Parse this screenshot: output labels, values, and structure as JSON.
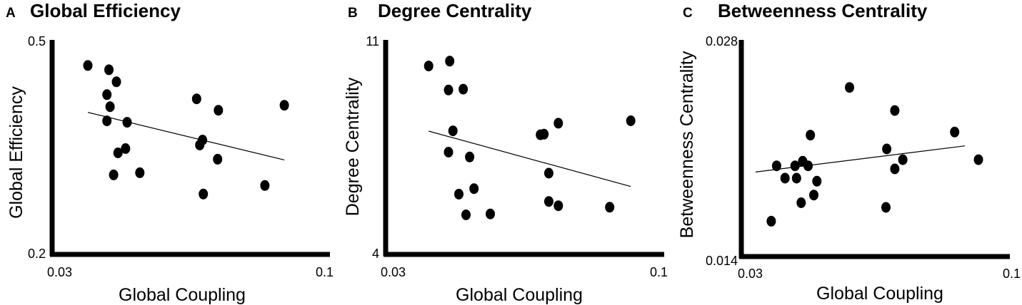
{
  "chart_data": [
    {
      "type": "scatter",
      "panel": "A",
      "title": "Global Efficiency",
      "xlabel": "Global Coupling",
      "ylabel": "Global Efficiency",
      "xlim": [
        0.03,
        0.1
      ],
      "ylim": [
        0.2,
        0.5
      ],
      "x_ticks": [
        "0.03",
        "0.1"
      ],
      "y_ticks": [
        "0.5",
        "0.2"
      ],
      "points": [
        {
          "x": 0.039,
          "y": 0.466
        },
        {
          "x": 0.0443,
          "y": 0.46
        },
        {
          "x": 0.0462,
          "y": 0.443
        },
        {
          "x": 0.0438,
          "y": 0.425
        },
        {
          "x": 0.0446,
          "y": 0.408
        },
        {
          "x": 0.0438,
          "y": 0.388
        },
        {
          "x": 0.0489,
          "y": 0.386
        },
        {
          "x": 0.0466,
          "y": 0.343
        },
        {
          "x": 0.0485,
          "y": 0.349
        },
        {
          "x": 0.0455,
          "y": 0.312
        },
        {
          "x": 0.0521,
          "y": 0.315
        },
        {
          "x": 0.0664,
          "y": 0.419
        },
        {
          "x": 0.0719,
          "y": 0.403
        },
        {
          "x": 0.0679,
          "y": 0.361
        },
        {
          "x": 0.0672,
          "y": 0.354
        },
        {
          "x": 0.0717,
          "y": 0.334
        },
        {
          "x": 0.0681,
          "y": 0.285
        },
        {
          "x": 0.0836,
          "y": 0.297
        },
        {
          "x": 0.0885,
          "y": 0.41
        }
      ],
      "trend": {
        "x": [
          0.039,
          0.0885
        ],
        "y": [
          0.4,
          0.333
        ]
      }
    },
    {
      "type": "scatter",
      "panel": "B",
      "title": "Degree Centrality",
      "xlabel": "Global Coupling",
      "ylabel": "Degree Centrality",
      "xlim": [
        0.03,
        0.1
      ],
      "ylim": [
        4,
        11
      ],
      "x_ticks": [
        "0.03",
        "0.1"
      ],
      "y_ticks": [
        "11",
        "4"
      ],
      "points": [
        {
          "x": 0.0408,
          "y": 10.19
        },
        {
          "x": 0.0461,
          "y": 10.35
        },
        {
          "x": 0.0458,
          "y": 9.4
        },
        {
          "x": 0.0495,
          "y": 9.43
        },
        {
          "x": 0.0469,
          "y": 8.06
        },
        {
          "x": 0.0458,
          "y": 7.36
        },
        {
          "x": 0.0511,
          "y": 7.2
        },
        {
          "x": 0.0484,
          "y": 5.98
        },
        {
          "x": 0.0522,
          "y": 6.16
        },
        {
          "x": 0.0502,
          "y": 5.3
        },
        {
          "x": 0.0563,
          "y": 5.33
        },
        {
          "x": 0.0689,
          "y": 7.93
        },
        {
          "x": 0.0698,
          "y": 7.95
        },
        {
          "x": 0.0734,
          "y": 8.31
        },
        {
          "x": 0.071,
          "y": 6.67
        },
        {
          "x": 0.071,
          "y": 5.74
        },
        {
          "x": 0.0734,
          "y": 5.6
        },
        {
          "x": 0.0863,
          "y": 5.55
        },
        {
          "x": 0.0916,
          "y": 8.39
        }
      ],
      "trend": {
        "x": [
          0.0408,
          0.0916
        ],
        "y": [
          8.05,
          6.23
        ]
      }
    },
    {
      "type": "scatter",
      "panel": "C",
      "title": "Betweenness Centrality",
      "xlabel": "Global Coupling",
      "ylabel": "Betweenness Centrality",
      "xlim": [
        0.03,
        0.1
      ],
      "ylim": [
        0.014,
        0.028
      ],
      "x_ticks": [
        "0.03",
        "0.1"
      ],
      "y_ticks": [
        "0.028",
        "0.014"
      ],
      "points": [
        {
          "x": 0.044,
          "y": 0.0199
        },
        {
          "x": 0.046,
          "y": 0.0202
        },
        {
          "x": 0.048,
          "y": 0.0219
        },
        {
          "x": 0.0444,
          "y": 0.0191
        },
        {
          "x": 0.0414,
          "y": 0.0191
        },
        {
          "x": 0.0392,
          "y": 0.0199
        },
        {
          "x": 0.0378,
          "y": 0.0163
        },
        {
          "x": 0.0474,
          "y": 0.0199
        },
        {
          "x": 0.0497,
          "y": 0.0189
        },
        {
          "x": 0.0456,
          "y": 0.0175
        },
        {
          "x": 0.0489,
          "y": 0.018
        },
        {
          "x": 0.0582,
          "y": 0.025
        },
        {
          "x": 0.07,
          "y": 0.0235
        },
        {
          "x": 0.0679,
          "y": 0.021
        },
        {
          "x": 0.0721,
          "y": 0.0203
        },
        {
          "x": 0.07,
          "y": 0.0197
        },
        {
          "x": 0.0677,
          "y": 0.0172
        },
        {
          "x": 0.0856,
          "y": 0.0221
        },
        {
          "x": 0.0918,
          "y": 0.0203
        }
      ],
      "trend": {
        "x": [
          0.0337,
          0.0883
        ],
        "y": [
          0.0195,
          0.0212
        ]
      }
    }
  ]
}
